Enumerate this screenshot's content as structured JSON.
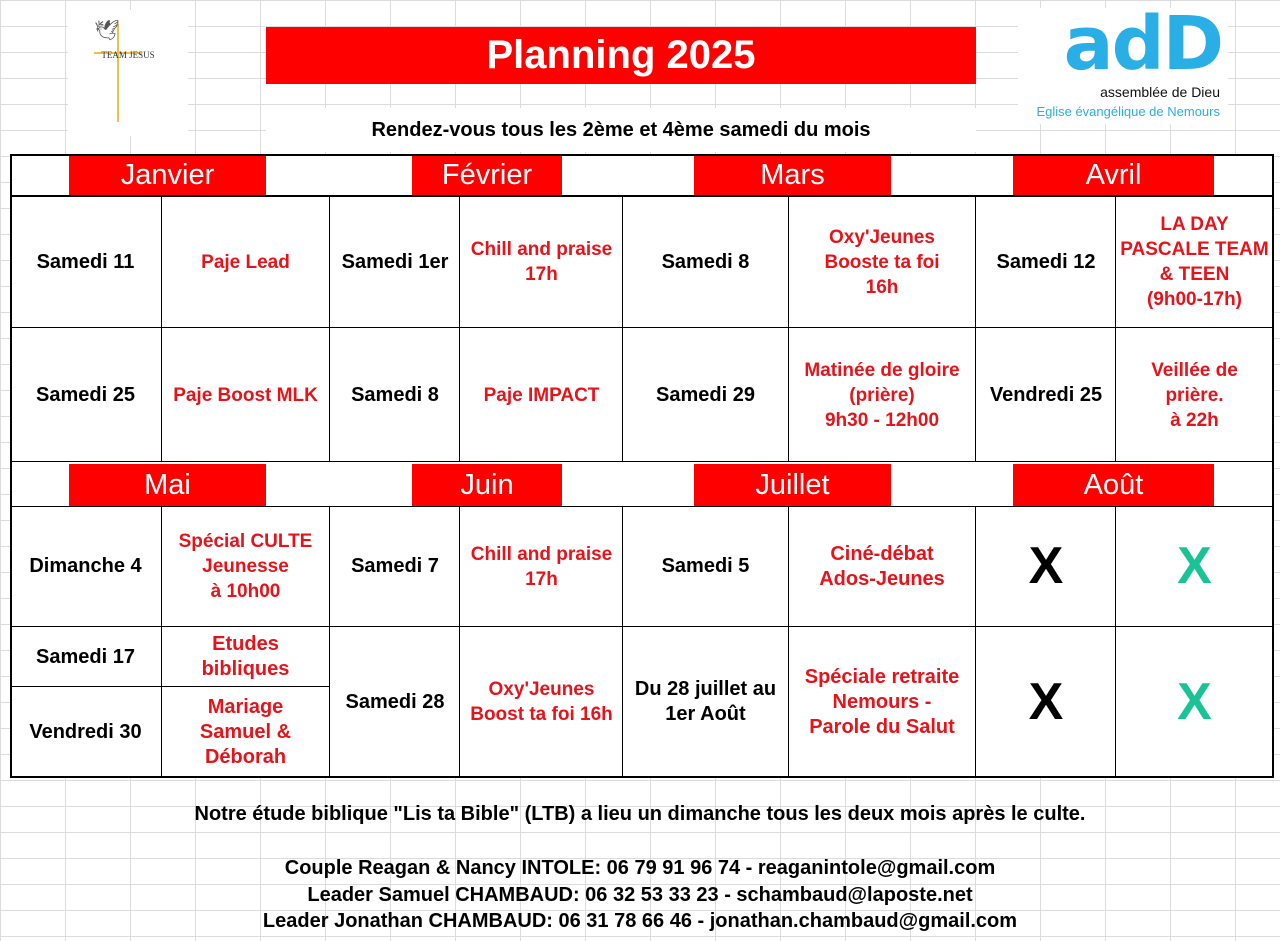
{
  "header": {
    "title": "Planning 2025",
    "subtitle": "Rendez-vous tous les 2ème et 4ème samedi du mois",
    "team_logo_text": "TEAM JESUS",
    "org_logo_word": "adD",
    "org_name": "assemblée de Dieu",
    "org_sub": "Eglise évangélique de Nemours"
  },
  "months": [
    "Janvier",
    "Février",
    "Mars",
    "Avril",
    "Mai",
    "Juin",
    "Juillet",
    "Août"
  ],
  "block1": {
    "row1": {
      "jan_date": "Samedi 11",
      "jan_event": "Paje Lead",
      "feb_date": "Samedi 1er",
      "feb_event": "Chill and praise\n17h",
      "mar_date": "Samedi 8",
      "mar_event": "Oxy'Jeunes\nBooste ta foi\n16h",
      "apr_date": "Samedi 12",
      "apr_event": "LA DAY\nPASCALE TEAM\n& TEEN\n(9h00-17h)"
    },
    "row2": {
      "jan_date": "Samedi 25",
      "jan_event": "Paje Boost MLK",
      "feb_date": "Samedi 8",
      "feb_event": "Paje IMPACT",
      "mar_date": "Samedi 29",
      "mar_event": "Matinée de gloire\n(prière)\n9h30 - 12h00",
      "apr_date": "Vendredi 25",
      "apr_event": "Veillée de\nprière.\nà 22h"
    }
  },
  "block2": {
    "row1": {
      "may_date": "Dimanche 4",
      "may_event": "Spécial CULTE\nJeunesse\nà 10h00",
      "jun_date": "Samedi 7",
      "jun_event": "Chill and praise\n17h",
      "jul_date": "Samedi 5",
      "jul_event": "Ciné-débat\nAdos-Jeunes",
      "aug_date": "X",
      "aug_event": "X"
    },
    "row2": {
      "may_date_a": "Samedi 17",
      "may_event_a": "Etudes\nbibliques",
      "may_date_b": "Vendredi 30",
      "may_event_b": "Mariage\nSamuel &\nDéborah",
      "jun_date": "Samedi 28",
      "jun_event": "Oxy'Jeunes\nBoost ta foi 16h",
      "jul_date": "Du 28 juillet au\n1er Août",
      "jul_event": "Spéciale retraite\nNemours -\nParole du Salut",
      "aug_date": "X",
      "aug_event": "X"
    }
  },
  "footer": {
    "note": "Notre étude biblique \"Lis ta Bible\" (LTB) a lieu un dimanche tous les deux mois après le culte.",
    "contact1": "Couple Reagan & Nancy INTOLE: 06 79 91 96 74  - reaganintole@gmail.com",
    "contact2": "Leader  Samuel CHAMBAUD: 06 32 53 33 23 - schambaud@laposte.net",
    "contact3": "Leader  Jonathan CHAMBAUD: 06 31 78 66 46 - jonathan.chambaud@gmail.com"
  },
  "colors": {
    "accent_red": "#ff0000",
    "event_red": "#e5141b",
    "logo_blue": "#2aaee6",
    "x_green": "#19c396"
  }
}
